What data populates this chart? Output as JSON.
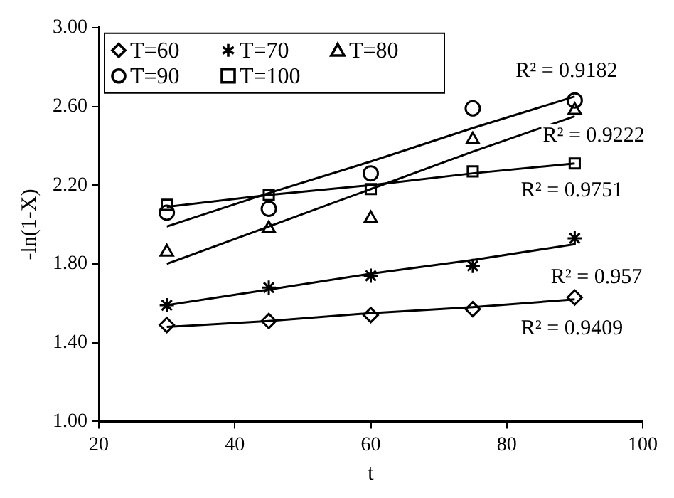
{
  "chart_data": {
    "type": "scatter",
    "xlabel": "t",
    "ylabel": "-ln(1-X)",
    "xlim": [
      20,
      100
    ],
    "xticks": [
      20,
      40,
      60,
      80,
      100
    ],
    "ylim": [
      1,
      3
    ],
    "yticks": [
      {
        "value": 1,
        "label": "1.00"
      },
      {
        "value": 1.4,
        "label": "1.40"
      },
      {
        "value": 1.8,
        "label": "1.80"
      },
      {
        "value": 2.2,
        "label": "2.20"
      },
      {
        "value": 2.6,
        "label": "2.60"
      },
      {
        "value": 3,
        "label": "3.00"
      }
    ],
    "x": [
      30,
      45,
      60,
      75,
      90
    ],
    "grid": false,
    "legend": "top left",
    "series": [
      {
        "name": "T=60",
        "color": "#000000",
        "marker": "diamond",
        "values": [
          1.49,
          1.51,
          1.54,
          1.57,
          1.63
        ]
      },
      {
        "name": "T=70",
        "color": "#000000",
        "marker": "cross",
        "values": [
          1.59,
          1.68,
          1.74,
          1.79,
          1.93
        ]
      },
      {
        "name": "T=80",
        "color": "#000000",
        "marker": "triangle",
        "values": [
          1.86,
          1.98,
          2.03,
          2.43,
          2.58
        ]
      },
      {
        "name": "T=90",
        "color": "#000000",
        "marker": "circle",
        "values": [
          2.06,
          2.08,
          2.26,
          2.59,
          2.63
        ]
      },
      {
        "name": "T=100",
        "color": "#000000",
        "marker": "square",
        "values": [
          2.1,
          2.15,
          2.18,
          2.27,
          2.31
        ]
      },
      {
        "type": "line",
        "color": "#000000",
        "marker": "none",
        "values": [
          1.48,
          1.51,
          1.55,
          1.58,
          1.62
        ]
      },
      {
        "type": "line",
        "color": "#000000",
        "marker": "none",
        "values": [
          1.59,
          1.67,
          1.75,
          1.82,
          1.9
        ]
      },
      {
        "type": "line",
        "color": "#000000",
        "marker": "none",
        "values": [
          1.8,
          1.99,
          2.18,
          2.37,
          2.55
        ]
      },
      {
        "type": "line",
        "color": "#000000",
        "marker": "none",
        "values": [
          1.99,
          2.16,
          2.32,
          2.49,
          2.65
        ]
      },
      {
        "type": "line",
        "color": "#000000",
        "marker": "none",
        "values": [
          2.09,
          2.15,
          2.2,
          2.26,
          2.31
        ]
      }
    ],
    "annotations": [
      "R² = 0.9182",
      "R² = 0.9222",
      "R² = 0.9751",
      "R² = 0.957",
      "R² = 0.9409"
    ]
  }
}
